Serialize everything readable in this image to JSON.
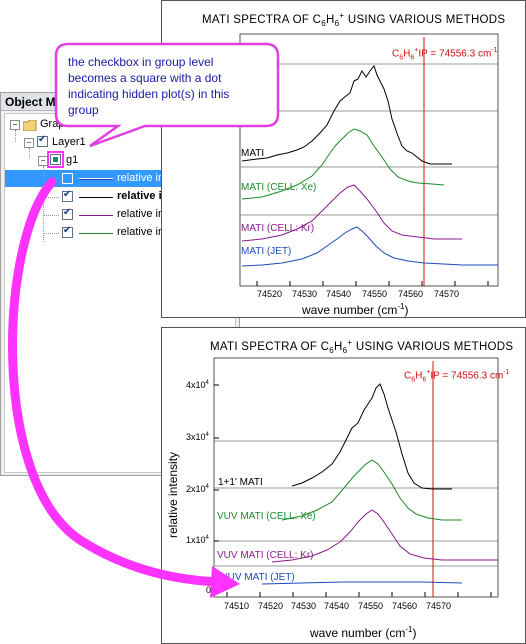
{
  "object_manager": {
    "title": "Object M",
    "tree": {
      "graph_label": "Grap",
      "layer_label": "Layer1",
      "group_label": "g1",
      "plots": [
        {
          "label": "relative intensity",
          "color": "#1f4ab8",
          "checked": false,
          "selected": true,
          "bold": false
        },
        {
          "label": "relative intensity",
          "color": "#000000",
          "checked": true,
          "selected": false,
          "bold": true
        },
        {
          "label": "relative intensity",
          "color": "#8b1a8b",
          "checked": true,
          "selected": false,
          "bold": false
        },
        {
          "label": "relative intensity",
          "color": "#1a8a2a",
          "checked": true,
          "selected": false,
          "bold": false
        }
      ]
    }
  },
  "callout": {
    "lines": [
      "the checkbox in group level",
      "becomes a square with a dot",
      "indicating hidden plot(s)  in this",
      "group"
    ],
    "border_color": "#e040e0",
    "arrow_color": "#ff33ff"
  },
  "graph_top": {
    "title_prefix": "MATI SPECTRA OF C",
    "title_sub1": "6",
    "title_mid": "H",
    "title_sub2": "6",
    "title_sup": "+",
    "title_suffix": " USING VARIOUS METHODS",
    "ip_prefix": "C",
    "ip_sub1": "6",
    "ip_mid": "H",
    "ip_sub2": "6",
    "ip_sup": "+",
    "ip_text": "IP = 74556.3 cm",
    "ip_sup2": "-1",
    "xlabel": "wave number (cm",
    "xlabel_sup": "-1",
    "xlabel_end": ")",
    "x_ticks": [
      "74520",
      "74530",
      "74540",
      "74550",
      "74560",
      "74570"
    ],
    "series_labels": [
      {
        "text": "MATI",
        "color": "#000000"
      },
      {
        "text": "MATI (CELL: Xe)",
        "color": "#1a8a2a"
      },
      {
        "text": "MATI (CELL: Kr)",
        "color": "#8b1a8b"
      },
      {
        "text": "MATI (JET)",
        "color": "#1f4ab8"
      }
    ]
  },
  "graph_bottom": {
    "title_prefix": "MATI SPECTRA OF C",
    "title_sub1": "6",
    "title_mid": "H",
    "title_sub2": "6",
    "title_sup": "+",
    "title_suffix": " USING VARIOUS METHODS",
    "ip_prefix": "C",
    "ip_sub1": "6",
    "ip_mid": "H",
    "ip_sub2": "6",
    "ip_sup": "+",
    "ip_text": "IP = 74556.3 cm",
    "ip_sup2": "-1",
    "xlabel": "wave number (cm",
    "xlabel_sup": "-1",
    "xlabel_end": ")",
    "ylabel": "relative intensity",
    "x_ticks": [
      "74510",
      "74520",
      "74530",
      "74540",
      "74550",
      "74560",
      "74570"
    ],
    "y_ticks": [
      {
        "base": "4x10",
        "exp": "4"
      },
      {
        "base": "3x10",
        "exp": "4"
      },
      {
        "base": "2x10",
        "exp": "4"
      },
      {
        "base": "1x10",
        "exp": "4"
      },
      {
        "base": "0",
        "exp": ""
      }
    ],
    "series_labels": [
      {
        "text": "1+1' MATI",
        "color": "#000000"
      },
      {
        "text": "VUV MATI (CELL: Xe)",
        "color": "#1a8a2a"
      },
      {
        "text": "VUV MATI (CELL: Kr)",
        "color": "#8b1a8b"
      },
      {
        "text": "VUV MATI (JET)",
        "color": "#1f4ab8"
      }
    ]
  },
  "colors": {
    "ip_line": "#d01010",
    "selection": "#3399ff"
  }
}
